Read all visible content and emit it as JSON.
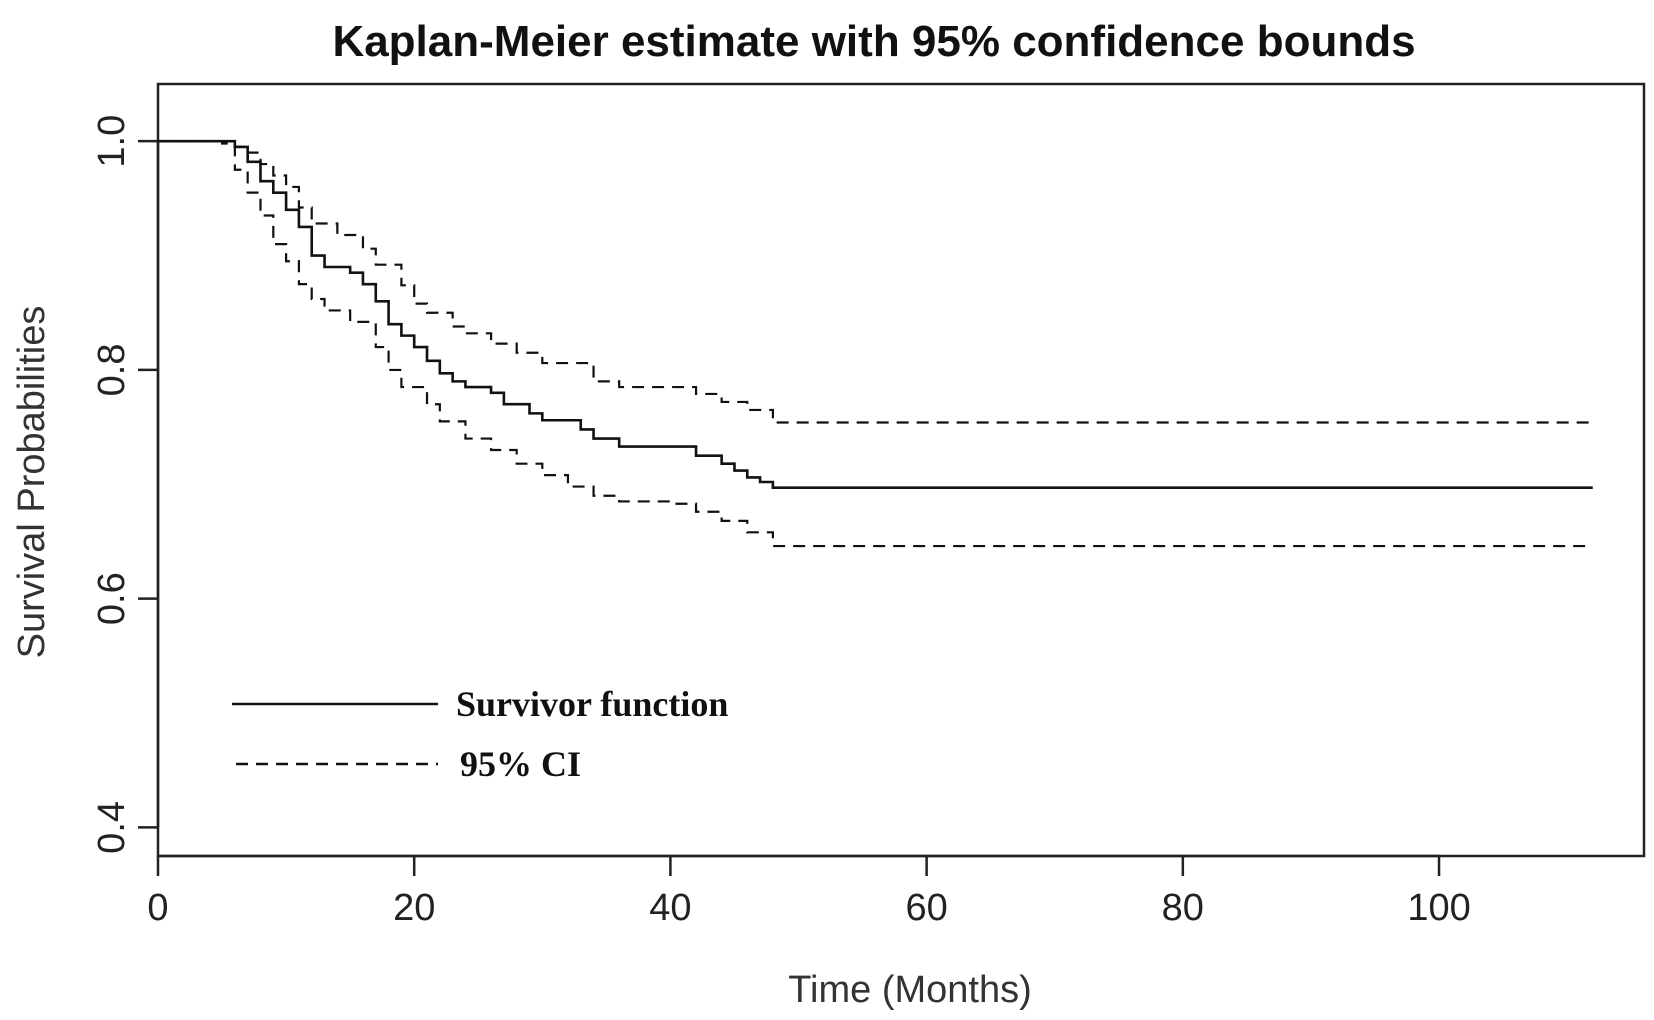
{
  "chart_data": {
    "type": "line",
    "title": "Kaplan-Meier estimate with 95% confidence bounds",
    "xlabel": "Time (Months)",
    "ylabel": "Survival Probabilities",
    "xlim": [
      0,
      116
    ],
    "ylim": [
      0.375,
      1.05
    ],
    "x_ticks": [
      0,
      20,
      40,
      60,
      80,
      100
    ],
    "y_ticks": [
      0.4,
      0.6,
      0.8,
      1.0
    ],
    "x_tick_labels": [
      "0",
      "20",
      "40",
      "60",
      "80",
      "100"
    ],
    "y_tick_labels": [
      "0.4",
      "0.6",
      "0.8",
      "1.0"
    ],
    "grid": false,
    "legend_position": "bottom-left",
    "series": [
      {
        "name": "Survivor function",
        "style": "solid",
        "x": [
          0,
          6,
          7,
          8,
          9,
          10,
          11,
          12,
          13,
          15,
          16,
          17,
          18,
          19,
          20,
          21,
          22,
          23,
          24,
          26,
          27,
          29,
          30,
          33,
          34,
          36,
          42,
          44,
          45,
          46,
          47,
          48,
          112
        ],
        "y": [
          1.0,
          0.995,
          0.982,
          0.965,
          0.955,
          0.94,
          0.925,
          0.9,
          0.89,
          0.885,
          0.875,
          0.86,
          0.84,
          0.83,
          0.82,
          0.808,
          0.797,
          0.79,
          0.785,
          0.78,
          0.77,
          0.762,
          0.756,
          0.748,
          0.74,
          0.733,
          0.725,
          0.718,
          0.712,
          0.706,
          0.702,
          0.697,
          0.697
        ]
      },
      {
        "name": "95% CI",
        "style": "dashed",
        "x": [
          0,
          5,
          6,
          7,
          8,
          9,
          10,
          11,
          12,
          14,
          16,
          17,
          19,
          20,
          21,
          23,
          24,
          26,
          28,
          30,
          34,
          36,
          42,
          44,
          46,
          48,
          112
        ],
        "y": [
          1.0,
          0.998,
          0.995,
          0.99,
          0.98,
          0.97,
          0.96,
          0.942,
          0.928,
          0.918,
          0.906,
          0.892,
          0.874,
          0.858,
          0.85,
          0.838,
          0.832,
          0.823,
          0.815,
          0.806,
          0.79,
          0.785,
          0.779,
          0.772,
          0.765,
          0.754,
          0.754
        ]
      },
      {
        "name": "95% CI",
        "style": "dashed",
        "x": [
          0,
          6,
          7,
          8,
          9,
          10,
          11,
          12,
          13,
          15,
          17,
          18,
          19,
          21,
          22,
          24,
          26,
          28,
          30,
          32,
          34,
          36,
          40,
          42,
          44,
          46,
          48,
          112
        ],
        "y": [
          1.0,
          0.975,
          0.955,
          0.935,
          0.91,
          0.895,
          0.875,
          0.862,
          0.852,
          0.842,
          0.82,
          0.8,
          0.785,
          0.77,
          0.755,
          0.74,
          0.73,
          0.718,
          0.708,
          0.698,
          0.69,
          0.685,
          0.683,
          0.676,
          0.668,
          0.658,
          0.646,
          0.646
        ]
      }
    ],
    "legend": [
      {
        "label": "Survivor function",
        "style": "solid"
      },
      {
        "label": "95% CI",
        "style": "dashed"
      }
    ]
  }
}
